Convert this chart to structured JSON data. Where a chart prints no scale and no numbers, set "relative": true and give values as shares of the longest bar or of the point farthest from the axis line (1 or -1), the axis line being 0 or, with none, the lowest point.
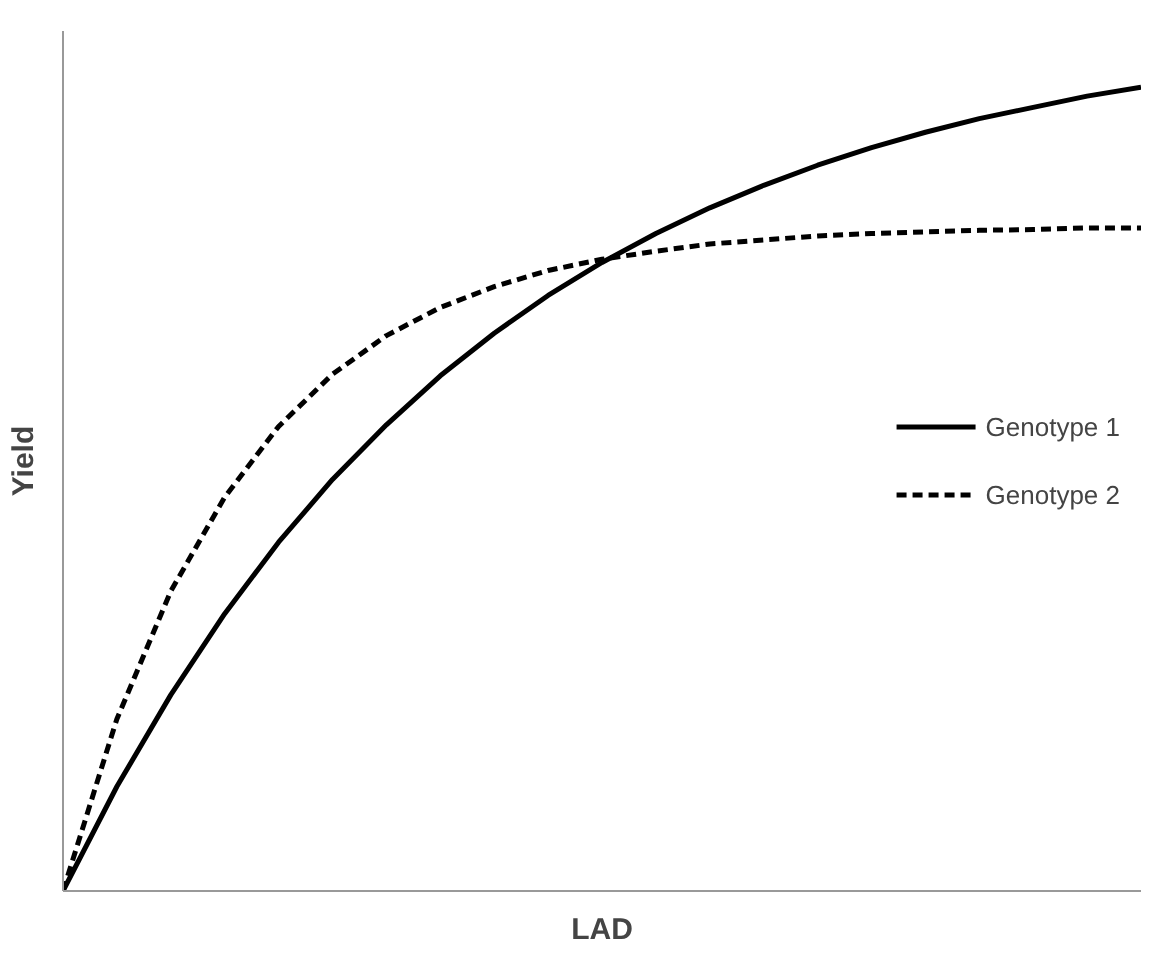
{
  "chart_data": {
    "type": "line",
    "relative": true,
    "xlabel": "LAD",
    "ylabel": "Yield",
    "legend": "right",
    "grid": false,
    "marker": "none",
    "categories": [
      null,
      null,
      null,
      null,
      null,
      null,
      null,
      null,
      null,
      null,
      null,
      null,
      null,
      null,
      null,
      null,
      null,
      null,
      null,
      null,
      null
    ],
    "series": [
      {
        "name": "Genotype 1",
        "color": "#000000",
        "line_style": "solid",
        "values": [
          0,
          0.13,
          0.244,
          0.345,
          0.434,
          0.512,
          0.58,
          0.641,
          0.694,
          0.741,
          0.782,
          0.818,
          0.85,
          0.878,
          0.903,
          0.925,
          0.944,
          0.961,
          0.975,
          0.989,
          1.0
        ]
      },
      {
        "name": "Genotype 2",
        "color": "#000000",
        "line_style": "dashed",
        "values": [
          0,
          0.214,
          0.373,
          0.49,
          0.578,
          0.643,
          0.691,
          0.726,
          0.752,
          0.772,
          0.786,
          0.796,
          0.805,
          0.81,
          0.815,
          0.818,
          0.82,
          0.822,
          0.823,
          0.825,
          0.825
        ]
      }
    ]
  }
}
